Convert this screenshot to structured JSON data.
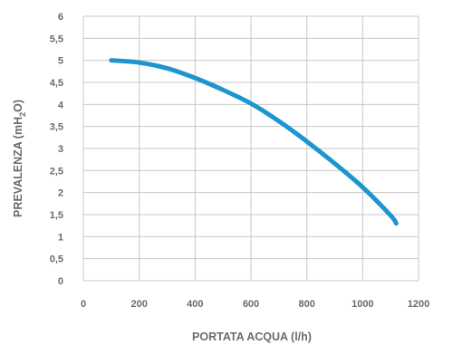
{
  "chart_data": {
    "type": "line",
    "xlabel": "PORTATA ACQUA  (l/h)",
    "ylabel_parts": [
      "PREVALENZA  (mH",
      "2",
      "O)"
    ],
    "xlim": [
      0,
      1200
    ],
    "ylim": [
      0,
      6
    ],
    "x_ticks": [
      0,
      200,
      400,
      600,
      800,
      1000,
      1200
    ],
    "y_ticks": [
      0,
      0.5,
      1,
      1.5,
      2,
      2.5,
      3,
      3.5,
      4,
      4.5,
      5,
      5.5,
      6
    ],
    "x_tick_labels": [
      "0",
      "200",
      "400",
      "600",
      "800",
      "1000",
      "1200"
    ],
    "y_tick_labels": [
      "0",
      "0,5",
      "1",
      "1,5",
      "2",
      "2,5",
      "3",
      "3,5",
      "4",
      "4,5",
      "5",
      "5,5",
      "6"
    ],
    "grid": true,
    "color": "#1f95d0",
    "series": [
      {
        "x": [
          100,
          200,
          300,
          400,
          500,
          600,
          700,
          800,
          900,
          1000,
          1100,
          1120
        ],
        "y": [
          5.0,
          4.95,
          4.82,
          4.6,
          4.33,
          4.02,
          3.62,
          3.16,
          2.66,
          2.12,
          1.48,
          1.3
        ]
      }
    ]
  }
}
